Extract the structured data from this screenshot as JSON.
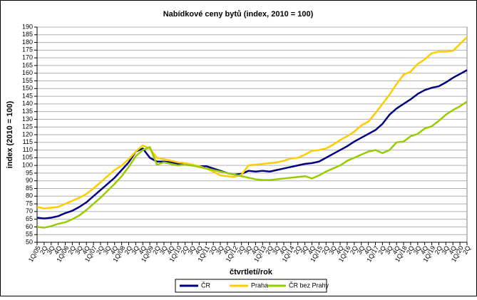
{
  "chart_data": {
    "type": "line",
    "title": "Nabídkové ceny bytů (index, 2010 = 100)",
    "y_label": "index (2010 = 100)",
    "x_label": "čtvrtletí/rok",
    "categories": [
      "1Q/05",
      "2Q",
      "3Q",
      "4Q",
      "1Q/06",
      "2Q",
      "3Q",
      "4Q",
      "1Q/07",
      "2Q",
      "3Q",
      "4Q",
      "1Q/08",
      "2Q",
      "3Q",
      "4Q",
      "1Q/09",
      "2Q",
      "3Q",
      "4Q",
      "1Q/10",
      "2Q",
      "3Q",
      "4Q",
      "1Q/11",
      "2Q",
      "3Q",
      "4Q",
      "1Q/12",
      "2Q",
      "3Q",
      "4Q",
      "1Q/13",
      "2Q",
      "3Q",
      "4Q",
      "1Q/14",
      "2Q",
      "3Q",
      "4Q",
      "1Q/15",
      "2Q",
      "3Q",
      "4Q",
      "1Q/16",
      "2Q",
      "3Q",
      "4Q",
      "1Q/17",
      "2Q",
      "3Q",
      "4Q",
      "1Q/18",
      "2Q",
      "3Q",
      "4Q",
      "1Q/19",
      "2Q",
      "3Q",
      "4Q",
      "1Q/20",
      "2Q"
    ],
    "series": [
      {
        "name": "ČR",
        "color": "#00007f",
        "values": [
          66,
          65.5,
          66,
          67,
          69,
          70.5,
          73,
          76,
          80,
          84,
          88,
          92,
          97,
          102,
          109,
          111,
          105,
          102.5,
          102.5,
          102,
          101,
          100.5,
          100,
          99.5,
          99.5,
          98,
          96.5,
          95,
          94,
          94.5,
          96.5,
          96,
          96.5,
          96,
          97,
          98,
          99,
          100,
          101,
          101.5,
          102.5,
          105,
          107.5,
          110,
          112.5,
          115.5,
          118,
          120.5,
          123,
          127,
          133,
          137,
          140,
          143,
          146.5,
          149,
          150.5,
          151.5,
          154,
          157,
          159.5,
          162
        ]
      },
      {
        "name": "Praha",
        "color": "#ffcc00",
        "values": [
          73,
          72,
          72.5,
          73,
          75,
          77,
          79,
          81.5,
          85,
          89,
          93,
          97,
          100,
          104,
          109,
          113,
          111,
          105,
          104,
          103,
          102,
          101.5,
          100.5,
          99.5,
          98,
          96,
          93.5,
          93,
          92.5,
          94,
          100,
          100.5,
          101,
          101.5,
          102,
          103,
          104.5,
          105,
          107,
          109.5,
          110,
          111,
          113.5,
          116.5,
          119,
          122,
          126,
          128.5,
          134,
          140,
          146,
          153,
          159,
          161,
          166,
          169,
          173,
          174,
          174,
          174.5,
          179,
          183.5
        ]
      },
      {
        "name": "ČR bez Prahy",
        "color": "#99cc00",
        "values": [
          60,
          59.5,
          60.5,
          62,
          63,
          65,
          67.5,
          71,
          75,
          79,
          83.5,
          88,
          93,
          99,
          106,
          110,
          112,
          100.5,
          102,
          101,
          100,
          100.5,
          100,
          99,
          98,
          97,
          96,
          95,
          94,
          93,
          92,
          91,
          90.5,
          90.5,
          91,
          91.5,
          92,
          92.5,
          93,
          91.5,
          93.5,
          96,
          98,
          100,
          103,
          105,
          107,
          109,
          110,
          108,
          110,
          115,
          115.5,
          119,
          120.5,
          124,
          125.5,
          129,
          133,
          136,
          138.5,
          141.5
        ]
      }
    ],
    "ylim": [
      50,
      190
    ],
    "yticks": [
      50,
      55,
      60,
      65,
      70,
      75,
      80,
      85,
      90,
      95,
      100,
      105,
      110,
      115,
      120,
      125,
      130,
      135,
      140,
      145,
      150,
      155,
      160,
      165,
      170,
      175,
      180,
      185,
      190
    ],
    "grid": true
  }
}
